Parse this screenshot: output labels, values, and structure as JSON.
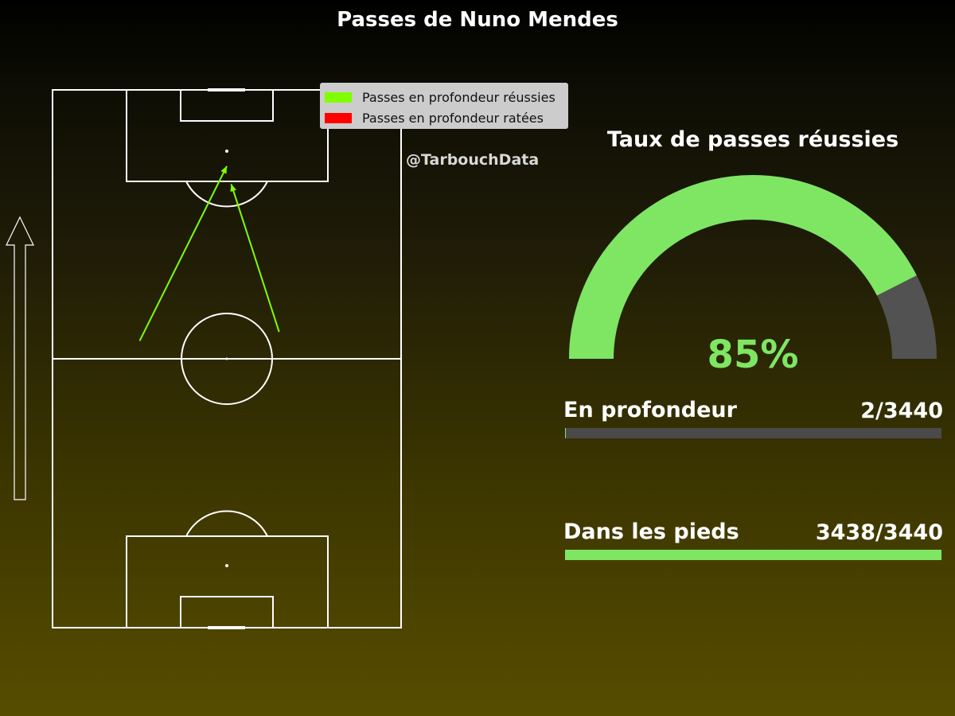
{
  "title": "Passes de Nuno Mendes",
  "watermark": "@TarbouchData",
  "legend": {
    "success_label": "Passes en profondeur réussies",
    "fail_label": "Passes en profondeur ratées",
    "success_color": "#7fff00",
    "fail_color": "#ff0000"
  },
  "chart_data": [
    {
      "type": "scatter",
      "title": "Passes de Nuno Mendes",
      "legend_placement": "top-right of pitch",
      "pitch": {
        "length": 120,
        "width": 80,
        "orientation": "vertical",
        "attack_direction": "up"
      },
      "series": [
        {
          "name": "Passes en profondeur réussies",
          "color": "#7fff00",
          "passes": [
            {
              "start": [
                20,
                64
              ],
              "end": [
                40,
                103
              ]
            },
            {
              "start": [
                52,
                66
              ],
              "end": [
                41,
                99
              ]
            }
          ]
        },
        {
          "name": "Passes en profondeur ratées",
          "color": "#ff0000",
          "passes": []
        }
      ]
    },
    {
      "type": "gauge",
      "title": "Taux de passes réussies",
      "value": 85,
      "value_label": "85%",
      "fill_color": "#7fe663",
      "rest_color": "#525252"
    },
    {
      "type": "bar",
      "stats": [
        {
          "label": "En profondeur",
          "value_label": "2/3440",
          "value": 2,
          "total": 3440,
          "color": "#7fe663"
        },
        {
          "label": "Dans les pieds",
          "value_label": "3438/3440",
          "value": 3438,
          "total": 3440,
          "color": "#7fe663"
        }
      ]
    }
  ]
}
